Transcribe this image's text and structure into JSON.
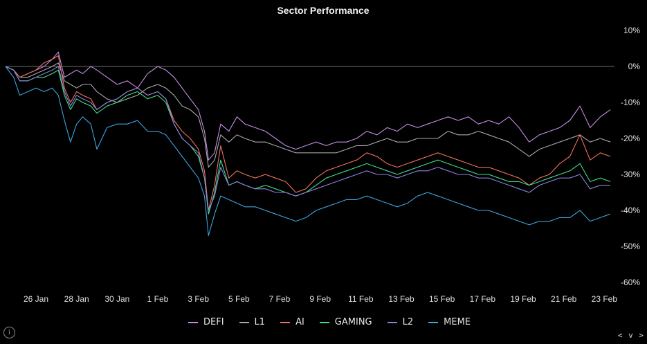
{
  "chart_data": {
    "type": "line",
    "title": "Sector Performance",
    "x_tick_labels": [
      "26 Jan",
      "28 Jan",
      "30 Jan",
      "1 Feb",
      "3 Feb",
      "5 Feb",
      "7 Feb",
      "9 Feb",
      "11 Feb",
      "13 Feb",
      "15 Feb",
      "17 Feb",
      "19 Feb",
      "21 Feb",
      "23 Feb"
    ],
    "xlim": [
      24.5,
      54.5
    ],
    "x_unit": "day (24 = 24 Jan, 32 = 1 Feb, 54 = 23 Feb)",
    "y_tick_labels": [
      "10%",
      "0%",
      "-10%",
      "-20%",
      "-30%",
      "-40%",
      "-50%",
      "-60%"
    ],
    "y_ticks": [
      10,
      0,
      -10,
      -20,
      -30,
      -40,
      -50,
      -60
    ],
    "ylim": [
      -60,
      10
    ],
    "y_unit": "%",
    "zero_line": true,
    "grid": false,
    "legend_position": "bottom",
    "series": [
      {
        "name": "DEFI",
        "color": "#c78fe8",
        "x": [
          24.5,
          24.9,
          25.2,
          25.6,
          26,
          26.4,
          26.8,
          27.1,
          27.4,
          27.7,
          28,
          28.3,
          28.7,
          29,
          29.5,
          30,
          30.5,
          31,
          31.5,
          32,
          32.4,
          32.8,
          33.2,
          33.6,
          34,
          34.3,
          34.5,
          34.8,
          35.1,
          35.5,
          35.9,
          36.3,
          36.8,
          37.3,
          37.8,
          38.3,
          38.8,
          39.3,
          39.8,
          40.3,
          40.8,
          41.3,
          41.8,
          42.3,
          42.8,
          43.3,
          43.8,
          44.3,
          44.8,
          45.3,
          45.8,
          46.3,
          46.8,
          47.3,
          47.8,
          48.3,
          48.8,
          49.3,
          49.8,
          50.3,
          50.8,
          51.3,
          51.8,
          52.3,
          52.8,
          53.3,
          53.8,
          54.3
        ],
        "values": [
          0,
          -1,
          -3,
          -2,
          -1,
          0,
          2,
          4,
          -3,
          -2,
          -1,
          -2,
          0,
          -1,
          -3,
          -5,
          -4,
          -6,
          -2,
          0,
          -1,
          -3,
          -6,
          -9,
          -12,
          -18,
          -26,
          -24,
          -16,
          -18,
          -14,
          -16,
          -17,
          -18,
          -20,
          -22,
          -23,
          -22,
          -21,
          -22,
          -21,
          -21,
          -20,
          -18,
          -19,
          -17,
          -18,
          -16,
          -17,
          -16,
          -15,
          -14,
          -15,
          -14,
          -16,
          -15,
          -16,
          -14,
          -17,
          -21,
          -19,
          -18,
          -17,
          -15,
          -11,
          -17,
          -14,
          -12
        ]
      },
      {
        "name": "L1",
        "color": "#a9a9a9",
        "x": [
          24.5,
          24.9,
          25.2,
          25.6,
          26,
          26.4,
          26.8,
          27.1,
          27.4,
          27.7,
          28,
          28.3,
          28.7,
          29,
          29.5,
          30,
          30.5,
          31,
          31.5,
          32,
          32.4,
          32.8,
          33.2,
          33.6,
          34,
          34.3,
          34.5,
          34.8,
          35.1,
          35.5,
          35.9,
          36.3,
          36.8,
          37.3,
          37.8,
          38.3,
          38.8,
          39.3,
          39.8,
          40.3,
          40.8,
          41.3,
          41.8,
          42.3,
          42.8,
          43.3,
          43.8,
          44.3,
          44.8,
          45.3,
          45.8,
          46.3,
          46.8,
          47.3,
          47.8,
          48.3,
          48.8,
          49.3,
          49.8,
          50.3,
          50.8,
          51.3,
          51.8,
          52.3,
          52.8,
          53.3,
          53.8,
          54.3
        ],
        "values": [
          0,
          -1,
          -3,
          -3,
          -2,
          -1,
          0,
          1,
          -4,
          -5,
          -6,
          -5,
          -5,
          -7,
          -9,
          -10,
          -9,
          -8,
          -6,
          -5,
          -6,
          -8,
          -11,
          -12,
          -14,
          -20,
          -28,
          -26,
          -19,
          -21,
          -19,
          -20,
          -21,
          -21,
          -22,
          -23,
          -24,
          -24,
          -24,
          -24,
          -24,
          -23,
          -22,
          -22,
          -21,
          -20,
          -21,
          -21,
          -20,
          -20,
          -20,
          -18,
          -19,
          -19,
          -18,
          -19,
          -20,
          -21,
          -23,
          -25,
          -23,
          -22,
          -21,
          -20,
          -19,
          -21,
          -20,
          -21
        ]
      },
      {
        "name": "AI",
        "color": "#f0735e",
        "x": [
          24.5,
          24.9,
          25.2,
          25.6,
          26,
          26.4,
          26.8,
          27.1,
          27.4,
          27.7,
          28,
          28.3,
          28.7,
          29,
          29.5,
          30,
          30.5,
          31,
          31.5,
          32,
          32.4,
          32.8,
          33.2,
          33.6,
          34,
          34.3,
          34.5,
          34.8,
          35.1,
          35.5,
          35.9,
          36.3,
          36.8,
          37.3,
          37.8,
          38.3,
          38.8,
          39.3,
          39.8,
          40.3,
          40.8,
          41.3,
          41.8,
          42.3,
          42.8,
          43.3,
          43.8,
          44.3,
          44.8,
          45.3,
          45.8,
          46.3,
          46.8,
          47.3,
          47.8,
          48.3,
          48.8,
          49.3,
          49.8,
          50.3,
          50.8,
          51.3,
          51.8,
          52.3,
          52.8,
          53.3,
          53.8,
          54.3
        ],
        "values": [
          0,
          -1,
          -3,
          -2,
          -1,
          1,
          2,
          3,
          -6,
          -10,
          -7,
          -8,
          -9,
          -12,
          -10,
          -9,
          -7,
          -6,
          -8,
          -7,
          -9,
          -15,
          -18,
          -20,
          -23,
          -29,
          -40,
          -33,
          -22,
          -31,
          -29,
          -30,
          -31,
          -30,
          -31,
          -32,
          -35,
          -34,
          -31,
          -29,
          -28,
          -27,
          -26,
          -24,
          -25,
          -27,
          -28,
          -27,
          -26,
          -25,
          -24,
          -25,
          -26,
          -27,
          -28,
          -28,
          -29,
          -30,
          -31,
          -33,
          -31,
          -30,
          -27,
          -25,
          -19,
          -26,
          -24,
          -25
        ]
      },
      {
        "name": "GAMING",
        "color": "#3ee08a",
        "x": [
          24.5,
          24.9,
          25.2,
          25.6,
          26,
          26.4,
          26.8,
          27.1,
          27.4,
          27.7,
          28,
          28.3,
          28.7,
          29,
          29.5,
          30,
          30.5,
          31,
          31.5,
          32,
          32.4,
          32.8,
          33.2,
          33.6,
          34,
          34.3,
          34.5,
          34.8,
          35.1,
          35.5,
          35.9,
          36.3,
          36.8,
          37.3,
          37.8,
          38.3,
          38.8,
          39.3,
          39.8,
          40.3,
          40.8,
          41.3,
          41.8,
          42.3,
          42.8,
          43.3,
          43.8,
          44.3,
          44.8,
          45.3,
          45.8,
          46.3,
          46.8,
          47.3,
          47.8,
          48.3,
          48.8,
          49.3,
          49.8,
          50.3,
          50.8,
          51.3,
          51.8,
          52.3,
          52.8,
          53.3,
          53.8,
          54.3
        ],
        "values": [
          0,
          -1,
          -4,
          -4,
          -3,
          -3,
          -2,
          -1,
          -8,
          -12,
          -9,
          -10,
          -11,
          -13,
          -11,
          -10,
          -8,
          -7,
          -9,
          -8,
          -10,
          -16,
          -20,
          -22,
          -25,
          -31,
          -41,
          -35,
          -26,
          -33,
          -32,
          -33,
          -34,
          -33,
          -34,
          -35,
          -36,
          -35,
          -33,
          -31,
          -30,
          -29,
          -28,
          -27,
          -28,
          -29,
          -30,
          -29,
          -28,
          -27,
          -26,
          -27,
          -28,
          -29,
          -30,
          -30,
          -31,
          -32,
          -32,
          -33,
          -32,
          -31,
          -30,
          -29,
          -27,
          -32,
          -31,
          -32
        ]
      },
      {
        "name": "L2",
        "color": "#8d82e0",
        "x": [
          24.5,
          24.9,
          25.2,
          25.6,
          26,
          26.4,
          26.8,
          27.1,
          27.4,
          27.7,
          28,
          28.3,
          28.7,
          29,
          29.5,
          30,
          30.5,
          31,
          31.5,
          32,
          32.4,
          32.8,
          33.2,
          33.6,
          34,
          34.3,
          34.5,
          34.8,
          35.1,
          35.5,
          35.9,
          36.3,
          36.8,
          37.3,
          37.8,
          38.3,
          38.8,
          39.3,
          39.8,
          40.3,
          40.8,
          41.3,
          41.8,
          42.3,
          42.8,
          43.3,
          43.8,
          44.3,
          44.8,
          45.3,
          45.8,
          46.3,
          46.8,
          47.3,
          47.8,
          48.3,
          48.8,
          49.3,
          49.8,
          50.3,
          50.8,
          51.3,
          51.8,
          52.3,
          52.8,
          53.3,
          53.8,
          54.3
        ],
        "values": [
          0,
          -1,
          -4,
          -4,
          -3,
          -2,
          -1,
          0,
          -7,
          -11,
          -8,
          -9,
          -10,
          -12,
          -10,
          -9,
          -7,
          -6,
          -8,
          -7,
          -9,
          -16,
          -20,
          -22,
          -24,
          -31,
          -40,
          -36,
          -28,
          -33,
          -32,
          -33,
          -34,
          -34,
          -35,
          -35,
          -36,
          -35,
          -34,
          -33,
          -32,
          -31,
          -30,
          -29,
          -30,
          -30,
          -31,
          -30,
          -29,
          -29,
          -28,
          -29,
          -30,
          -30,
          -31,
          -31,
          -32,
          -33,
          -34,
          -35,
          -33,
          -32,
          -31,
          -31,
          -30,
          -34,
          -33,
          -33
        ]
      },
      {
        "name": "MEME",
        "color": "#3da5e0",
        "x": [
          24.5,
          24.9,
          25.2,
          25.6,
          26,
          26.4,
          26.8,
          27.1,
          27.4,
          27.7,
          28,
          28.3,
          28.7,
          29,
          29.5,
          30,
          30.5,
          31,
          31.5,
          32,
          32.4,
          32.8,
          33.2,
          33.6,
          34,
          34.3,
          34.5,
          34.8,
          35.1,
          35.5,
          35.9,
          36.3,
          36.8,
          37.3,
          37.8,
          38.3,
          38.8,
          39.3,
          39.8,
          40.3,
          40.8,
          41.3,
          41.8,
          42.3,
          42.8,
          43.3,
          43.8,
          44.3,
          44.8,
          45.3,
          45.8,
          46.3,
          46.8,
          47.3,
          47.8,
          48.3,
          48.8,
          49.3,
          49.8,
          50.3,
          50.8,
          51.3,
          51.8,
          52.3,
          52.8,
          53.3,
          53.8,
          54.3
        ],
        "values": [
          0,
          -3,
          -8,
          -7,
          -6,
          -7,
          -6,
          -8,
          -15,
          -21,
          -16,
          -14,
          -16,
          -23,
          -17,
          -16,
          -16,
          -15,
          -18,
          -18,
          -19,
          -22,
          -25,
          -28,
          -31,
          -36,
          -47,
          -41,
          -36,
          -37,
          -38,
          -39,
          -39,
          -40,
          -41,
          -42,
          -43,
          -42,
          -40,
          -39,
          -38,
          -37,
          -37,
          -36,
          -37,
          -38,
          -39,
          -38,
          -36,
          -35,
          -36,
          -37,
          -38,
          -39,
          -40,
          -40,
          -41,
          -42,
          -43,
          -44,
          -43,
          -43,
          -42,
          -42,
          -40,
          -43,
          -42,
          -41
        ]
      }
    ]
  },
  "ui": {
    "info_icon": "i",
    "nav_prev": "<",
    "nav_next": "v",
    "nav_last": ">"
  }
}
